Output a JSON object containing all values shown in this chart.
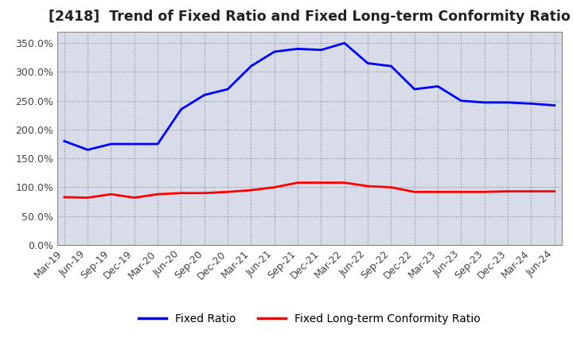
{
  "title": "[2418]  Trend of Fixed Ratio and Fixed Long-term Conformity Ratio",
  "x_labels": [
    "Mar-19",
    "Jun-19",
    "Sep-19",
    "Dec-19",
    "Mar-20",
    "Jun-20",
    "Sep-20",
    "Dec-20",
    "Mar-21",
    "Jun-21",
    "Sep-21",
    "Dec-21",
    "Mar-22",
    "Jun-22",
    "Sep-22",
    "Dec-22",
    "Mar-23",
    "Jun-23",
    "Sep-23",
    "Dec-23",
    "Mar-24",
    "Jun-24"
  ],
  "fixed_ratio": [
    1.8,
    1.65,
    1.75,
    1.75,
    1.75,
    2.35,
    2.6,
    2.7,
    3.1,
    3.35,
    3.4,
    3.38,
    3.5,
    3.15,
    3.1,
    2.7,
    2.75,
    2.5,
    2.47,
    2.47,
    2.45,
    2.42
  ],
  "fixed_lt_ratio": [
    0.83,
    0.82,
    0.88,
    0.82,
    0.88,
    0.9,
    0.9,
    0.92,
    0.95,
    1.0,
    1.08,
    1.08,
    1.08,
    1.02,
    1.0,
    0.92,
    0.92,
    0.92,
    0.92,
    0.93,
    0.93,
    0.93
  ],
  "fixed_ratio_color": "#0000FF",
  "fixed_lt_ratio_color": "#FF0000",
  "background_color": "#FFFFFF",
  "plot_bg_color": "#D8DCE8",
  "grid_color": "#888899",
  "ylim": [
    0.0,
    3.7
  ],
  "yticks": [
    0.0,
    0.5,
    1.0,
    1.5,
    2.0,
    2.5,
    3.0,
    3.5
  ],
  "legend_fixed_ratio": "Fixed Ratio",
  "legend_fixed_lt_ratio": "Fixed Long-term Conformity Ratio",
  "title_fontsize": 12.5,
  "tick_fontsize": 9,
  "legend_fontsize": 10,
  "linewidth": 2.0
}
